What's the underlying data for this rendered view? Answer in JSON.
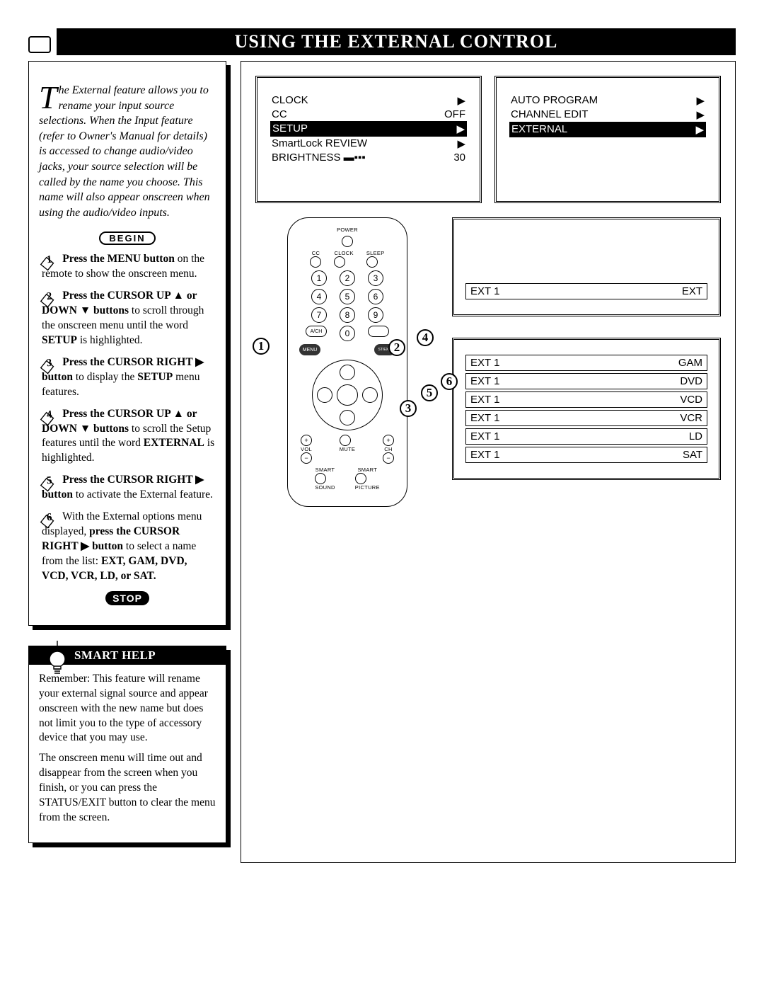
{
  "title": "USING THE EXTERNAL CONTROL",
  "intro": "he External feature allows you to rename your input source selections. When the Input feature (refer to Owner's Manual for details) is accessed to change audio/video jacks, your source selection will be called by the name you choose. This name will also appear onscreen when using the audio/video inputs.",
  "begin_label": "BEGIN",
  "stop_label": "STOP",
  "steps": {
    "1": {
      "bold": "Press the MENU button",
      "rest": " on the remote to show the onscreen menu."
    },
    "2": {
      "bold": "Press the CURSOR UP ▲ or DOWN ▼ buttons",
      "rest": " to scroll through the onscreen menu until the word ",
      "bold2": "SETUP",
      "rest2": " is highlighted."
    },
    "3": {
      "bold": "Press the CURSOR RIGHT ▶ button",
      "rest": " to display the ",
      "bold2": "SETUP",
      "rest2": " menu features."
    },
    "4": {
      "bold": "Press the CURSOR UP ▲ or DOWN ▼ buttons",
      "rest": " to scroll the Setup features until the word ",
      "bold2": "EXTERNAL",
      "rest2": " is highlighted."
    },
    "5": {
      "bold": "Press the CURSOR RIGHT ▶ button",
      "rest": " to activate the External feature."
    },
    "6": {
      "pre": "With the External options menu displayed, ",
      "bold": "press the CURSOR RIGHT ▶ button",
      "rest": " to select a name from the list: ",
      "bold2": "EXT, GAM, DVD, VCD, VCR, LD, or SAT."
    }
  },
  "smart": {
    "title": "SMART HELP",
    "p1": "Remember: This feature will rename your external signal source and appear onscreen with the new name but does not limit you to the type of accessory device that you may use.",
    "p2": "The onscreen menu will time out and disappear from the screen when you finish, or you can press the STATUS/EXIT button to clear the menu from the screen."
  },
  "screen1": {
    "rows": [
      {
        "l": "CLOCK",
        "r": "▶",
        "hl": false
      },
      {
        "l": "CC",
        "r": "OFF",
        "hl": false
      },
      {
        "l": "SETUP",
        "r": "▶",
        "hl": true
      },
      {
        "l": "SmartLock REVIEW",
        "r": "▶",
        "hl": false
      },
      {
        "l": "BRIGHTNESS ▬▪▪▪",
        "r": "30",
        "hl": false
      }
    ]
  },
  "screen2": {
    "rows": [
      {
        "l": "AUTO PROGRAM",
        "r": "▶",
        "hl": false
      },
      {
        "l": "CHANNEL EDIT",
        "r": "▶",
        "hl": false
      },
      {
        "l": "EXTERNAL",
        "r": "▶",
        "hl": true
      }
    ]
  },
  "ext1_panel": {
    "left": "EXT 1",
    "right": "EXT"
  },
  "ext_options": [
    {
      "l": "EXT 1",
      "r": "GAM"
    },
    {
      "l": "EXT 1",
      "r": "DVD"
    },
    {
      "l": "EXT 1",
      "r": "VCD"
    },
    {
      "l": "EXT 1",
      "r": "VCR"
    },
    {
      "l": "EXT 1",
      "r": "LD"
    },
    {
      "l": "EXT 1",
      "r": "SAT"
    }
  ],
  "remote": {
    "power": "POWER",
    "cc": "CC",
    "clock": "CLOCK",
    "sleep": "SLEEP",
    "ach": "A/CH",
    "menu": "MENU",
    "status": "STATUS/EXIT",
    "vol": "VOL",
    "ch": "CH",
    "mute": "MUTE",
    "smart_sound": "SMART",
    "sound": "SOUND",
    "smart_pic": "SMART",
    "picture": "PICTURE"
  },
  "callouts": {
    "c1": "1",
    "c2": "2",
    "c3": "3",
    "c4": "4",
    "c5": "5",
    "c6": "6"
  }
}
